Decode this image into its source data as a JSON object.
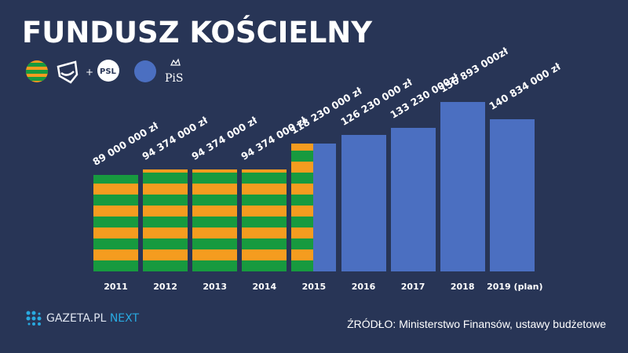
{
  "title": "FUNDUSZ KOŚCIELNY",
  "legend": {
    "coalition_logos": [
      "PSL"
    ],
    "coalition_plus": "+",
    "pis_logo": "PiS",
    "colors": {
      "green": "#179a3f",
      "orange": "#f59c1f",
      "blue": "#4b6fc1"
    }
  },
  "chart_data": {
    "type": "bar",
    "title": "FUNDUSZ KOŚCIELNY",
    "categories": [
      "2011",
      "2012",
      "2013",
      "2014",
      "2015",
      "2016",
      "2017",
      "2018",
      "2019 (plan)"
    ],
    "values": [
      89000000,
      94374000,
      94374000,
      94374000,
      118230000,
      126230000,
      133230000,
      156893000,
      140834000
    ],
    "value_labels": [
      "89 000 000 zł",
      "94 374 000 zł",
      "94 374 000 zł",
      "94 374 000 zł",
      "118 230 000 zł",
      "126 230 000 zł",
      "133 230 000zł",
      "156 893 000zł",
      "140 834 000 zł"
    ],
    "fill": [
      "coalition",
      "coalition",
      "coalition",
      "coalition",
      "split",
      "pis",
      "pis",
      "pis",
      "pis"
    ],
    "ylim": [
      0,
      156893000
    ],
    "grid": false
  },
  "footer": {
    "brand": "GAZETA.PL",
    "brand_accent": "NEXT",
    "source": "ŹRÓDŁO: Ministerstwo Finansów, ustawy budżetowe"
  }
}
